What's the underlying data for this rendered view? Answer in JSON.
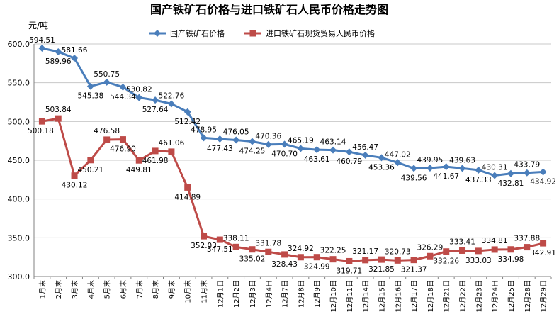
{
  "chart_data": {
    "type": "line",
    "title": "国产铁矿石价格与进口铁矿石人民币价格走势图",
    "ylabel": "元/吨",
    "ylim": [
      300.0,
      600.0
    ],
    "yticks": [
      "300.0",
      "350.0",
      "400.0",
      "450.0",
      "500.0",
      "550.0",
      "600.0"
    ],
    "grid": "horizontal",
    "legend_position": "top-right",
    "categories": [
      "1月末",
      "2月末",
      "3月末",
      "4月末",
      "5月末",
      "6月末",
      "7月末",
      "8月末",
      "9月末",
      "10月末",
      "11月末",
      "12月1日",
      "12月2日",
      "12月3日",
      "12月4日",
      "12月7日",
      "12月8日",
      "12月9日",
      "12月10日",
      "12月11日",
      "12月14日",
      "12月15日",
      "12月16日",
      "12月17日",
      "12月18日",
      "12月21日",
      "12月22日",
      "12月23日",
      "12月24日",
      "12月25日",
      "12月28日",
      "12月29日"
    ],
    "series": [
      {
        "name": "国产铁矿石价格",
        "color": "#4a7ebb",
        "marker": "diamond",
        "values": [
          594.51,
          589.96,
          581.66,
          545.38,
          550.75,
          544.34,
          530.82,
          527.64,
          522.76,
          512.42,
          478.95,
          477.43,
          476.05,
          474.25,
          470.36,
          470.7,
          465.19,
          463.61,
          463.14,
          460.79,
          456.47,
          453.36,
          447.02,
          439.56,
          439.95,
          441.67,
          439.63,
          437.33,
          430.31,
          432.81,
          433.79,
          434.92
        ],
        "labels": [
          "594.51",
          "589.96",
          "581.66",
          "545.38",
          "550.75",
          "544.34",
          "530.82",
          "527.64",
          "522.76",
          "512.42",
          "478.95",
          "477.43",
          "476.05",
          "474.25",
          "470.36",
          "470.70",
          "465.19",
          "463.61",
          "463.14",
          "460.79",
          "456.47",
          "453.36",
          "447.02",
          "439.56",
          "439.95",
          "441.67",
          "439.63",
          "437.33",
          "430.31",
          "432.81",
          "433.79",
          "434.92"
        ]
      },
      {
        "name": "进口铁矿石现货贸易人民币价格",
        "color": "#be4b48",
        "marker": "square",
        "values": [
          500.18,
          503.84,
          430.12,
          450.21,
          476.58,
          476.9,
          449.81,
          461.98,
          461.06,
          414.89,
          352.03,
          347.51,
          338.11,
          335.02,
          331.78,
          328.43,
          324.92,
          324.99,
          322.25,
          319.71,
          321.17,
          321.85,
          320.73,
          321.37,
          326.29,
          332.26,
          333.41,
          333.03,
          334.81,
          334.98,
          337.88,
          342.91
        ],
        "labels": [
          "500.18",
          "503.84",
          "430.12",
          "450.21",
          "476.58",
          "476.90",
          "449.81",
          "461.98",
          "461.06",
          "414.89",
          "352.03",
          "347.51",
          "338.11",
          "335.02",
          "331.78",
          "328.43",
          "324.92",
          "324.99",
          "322.25",
          "319.71",
          "321.17",
          "321.85",
          "320.73",
          "321.37",
          "326.29",
          "332.26",
          "333.41",
          "333.03",
          "334.81",
          "334.98",
          "337.88",
          "342.91"
        ]
      }
    ]
  }
}
